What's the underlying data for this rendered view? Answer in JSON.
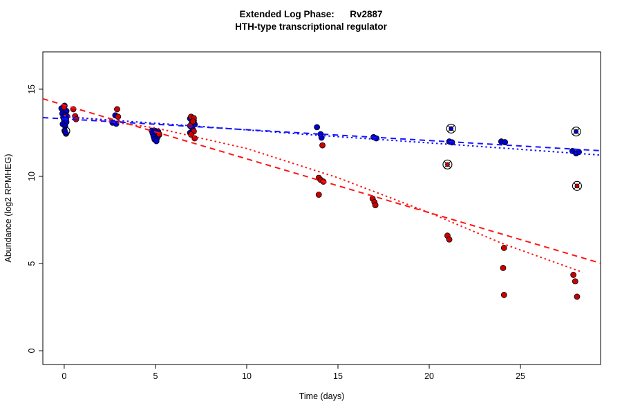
{
  "chart_data": {
    "type": "scatter",
    "title_line1": "Extended Log Phase:      Rv2887",
    "title_line2": "HTH-type transcriptional regulator",
    "xlabel": "Time  (days)",
    "ylabel": "Abundance  (log2 RPMHEG)",
    "x_ticks": [
      0,
      5,
      10,
      15,
      20,
      25
    ],
    "y_ticks": [
      0,
      5,
      10,
      15
    ],
    "xlim": [
      -1.17,
      29.39
    ],
    "ylim": [
      -0.79,
      17.14
    ],
    "grid": false,
    "legend": "none",
    "colors": {
      "blue_point": "#0000CD",
      "red_point": "#CC0000",
      "blue_line": "#1414FF",
      "red_line": "#FF1414",
      "marker_edge": "#000000"
    },
    "series": [
      {
        "name": "blue-points",
        "color_key": "blue_point",
        "points": [
          [
            -0.15,
            13.9
          ],
          [
            0.02,
            14.05
          ],
          [
            0.12,
            13.75
          ],
          [
            -0.1,
            13.6
          ],
          [
            0.05,
            13.52
          ],
          [
            0.15,
            13.45
          ],
          [
            -0.05,
            13.38
          ],
          [
            0.1,
            13.3
          ],
          [
            0.0,
            13.22
          ],
          [
            0.12,
            13.12
          ],
          [
            -0.08,
            13.0
          ],
          [
            0.05,
            12.88
          ],
          [
            0.02,
            12.62
          ],
          [
            0.1,
            12.45
          ],
          [
            2.8,
            13.5
          ],
          [
            2.65,
            13.08
          ],
          [
            2.85,
            13.02
          ],
          [
            4.8,
            12.62
          ],
          [
            5.0,
            12.6
          ],
          [
            5.15,
            12.56
          ],
          [
            4.85,
            12.46
          ],
          [
            5.05,
            12.42
          ],
          [
            5.2,
            12.38
          ],
          [
            4.9,
            12.28
          ],
          [
            5.1,
            12.22
          ],
          [
            4.95,
            12.12
          ],
          [
            5.05,
            12.02
          ],
          [
            6.9,
            13.32
          ],
          [
            7.1,
            13.2
          ],
          [
            7.0,
            13.08
          ],
          [
            7.15,
            12.98
          ],
          [
            6.95,
            12.85
          ],
          [
            7.05,
            12.68
          ],
          [
            6.9,
            12.5
          ],
          [
            13.85,
            12.82
          ],
          [
            14.05,
            12.42
          ],
          [
            14.1,
            12.22
          ],
          [
            16.95,
            12.25
          ],
          [
            17.1,
            12.18
          ],
          [
            21.1,
            12.0
          ],
          [
            21.25,
            11.95
          ],
          [
            23.95,
            12.0
          ],
          [
            24.15,
            11.96
          ],
          [
            27.85,
            11.45
          ],
          [
            28.05,
            11.32
          ],
          [
            28.2,
            11.4
          ]
        ]
      },
      {
        "name": "red-points",
        "color_key": "red_point",
        "points": [
          [
            0.0,
            13.97
          ],
          [
            0.5,
            13.85
          ],
          [
            0.6,
            13.45
          ],
          [
            0.65,
            13.28
          ],
          [
            2.9,
            13.85
          ],
          [
            2.95,
            13.42
          ],
          [
            5.2,
            12.42
          ],
          [
            6.95,
            13.42
          ],
          [
            7.1,
            13.34
          ],
          [
            7.05,
            13.15
          ],
          [
            6.9,
            12.9
          ],
          [
            7.1,
            12.58
          ],
          [
            6.95,
            12.4
          ],
          [
            7.15,
            12.18
          ],
          [
            14.15,
            11.78
          ],
          [
            13.95,
            9.92
          ],
          [
            14.05,
            9.8
          ],
          [
            14.2,
            9.7
          ],
          [
            13.95,
            8.95
          ],
          [
            16.9,
            8.72
          ],
          [
            17.0,
            8.52
          ],
          [
            17.05,
            8.35
          ],
          [
            21.0,
            6.6
          ],
          [
            21.1,
            6.38
          ],
          [
            24.1,
            5.9
          ],
          [
            24.05,
            4.75
          ],
          [
            24.1,
            3.2
          ],
          [
            27.9,
            4.35
          ],
          [
            28.0,
            3.98
          ],
          [
            28.1,
            3.1
          ]
        ]
      }
    ],
    "outlier_points": [
      {
        "x": 21.2,
        "y": 12.74,
        "color_key": "blue_point"
      },
      {
        "x": 28.05,
        "y": 12.57,
        "color_key": "blue_point"
      },
      {
        "x": 21.0,
        "y": 10.68,
        "color_key": "red_point"
      },
      {
        "x": 28.1,
        "y": 9.45,
        "color_key": "red_point"
      }
    ],
    "open_circle_points": [
      {
        "x": 0.1,
        "y": 12.6
      }
    ],
    "fit_lines": [
      {
        "name": "red-dashed-fit",
        "color_key": "red_line",
        "style": "dashed",
        "points": [
          [
            -1.17,
            14.45
          ],
          [
            29.39,
            5.02
          ]
        ]
      },
      {
        "name": "red-dotted-fit",
        "color_key": "red_line",
        "style": "dotted",
        "points": [
          [
            0,
            13.5
          ],
          [
            5,
            12.78
          ],
          [
            10,
            11.6
          ],
          [
            15,
            9.92
          ],
          [
            20,
            7.92
          ],
          [
            24,
            6.15
          ],
          [
            28.4,
            4.5
          ]
        ]
      },
      {
        "name": "blue-dashed-fit",
        "color_key": "blue_line",
        "style": "dashed",
        "points": [
          [
            -1.17,
            13.37
          ],
          [
            29.39,
            11.47
          ]
        ]
      },
      {
        "name": "blue-dotted-fit",
        "color_key": "blue_line",
        "style": "dotted",
        "points": [
          [
            0,
            13.42
          ],
          [
            7,
            12.9
          ],
          [
            14,
            12.35
          ],
          [
            21,
            11.85
          ],
          [
            29.39,
            11.22
          ]
        ]
      }
    ]
  }
}
